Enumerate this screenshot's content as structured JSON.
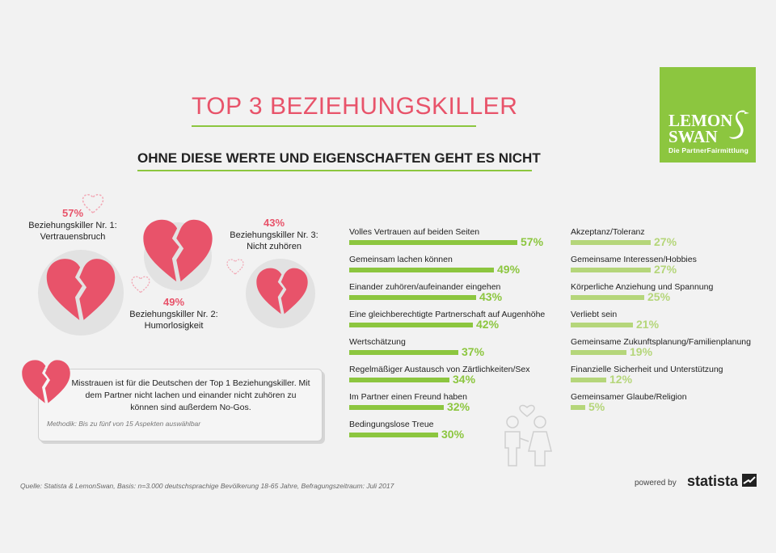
{
  "header": {
    "title": "TOP 3 BEZIEHUNGSKILLER",
    "subtitle": "OHNE DIESE WERTE UND EIGENSCHAFTEN GEHT ES NICHT"
  },
  "logo": {
    "line1": "LEMON",
    "line2": "SWAN",
    "tagline": "Die PartnerFairmittlung",
    "icon": "swan-icon"
  },
  "killers": [
    {
      "pct": "57%",
      "label1": "Beziehungskiller Nr. 1:",
      "label2": "Vertrauensbruch"
    },
    {
      "pct": "49%",
      "label1": "Beziehungskiller Nr. 2:",
      "label2": "Humorlosigkeit"
    },
    {
      "pct": "43%",
      "label1": "Beziehungskiller Nr. 3:",
      "label2": "Nicht zuhören"
    }
  ],
  "info": {
    "text": "Misstrauen ist für die Deutschen der Top 1 Beziehungskiller. Mit dem Partner nicht lachen und einander nicht zuhören zu können sind außerdem No-Gos.",
    "method": "Methodik: Bis zu fünf von 15 Aspekten auswählbar"
  },
  "chart_data": {
    "type": "bar",
    "unit": "%",
    "colors": {
      "left": "#8cc63f",
      "right": "#b5d67a",
      "accent": "#e8536a"
    },
    "categories": [
      "Volles Vertrauen auf beiden Seiten",
      "Gemeinsam lachen können",
      "Einander zuhören/aufeinander eingehen",
      "Eine gleichberechtigte Partnerschaft auf Augenhöhe",
      "Wertschätzung",
      "Regelmäßiger Austausch von Zärtlichkeiten/Sex",
      "Im Partner einen Freund haben",
      "Bedingungslose Treue",
      "Akzeptanz/Toleranz",
      "Gemeinsame Interessen/Hobbies",
      "Körperliche Anziehung und Spannung",
      "Verliebt sein",
      "Gemeinsame Zukunftsplanung/Familienplanung",
      "Finanzielle Sicherheit und Unterstützung",
      "Gemeinsamer Glaube/Religion"
    ],
    "values": [
      57,
      49,
      43,
      42,
      37,
      34,
      32,
      30,
      27,
      27,
      25,
      21,
      19,
      12,
      5
    ]
  },
  "footer": {
    "source": "Quelle: Statista & LemonSwan, Basis: n=3.000 deutschsprachige Bevölkerung 18-65 Jahre, Befragungszeitraum: Juli 2017",
    "powered_by": "powered by",
    "brand": "statista"
  }
}
